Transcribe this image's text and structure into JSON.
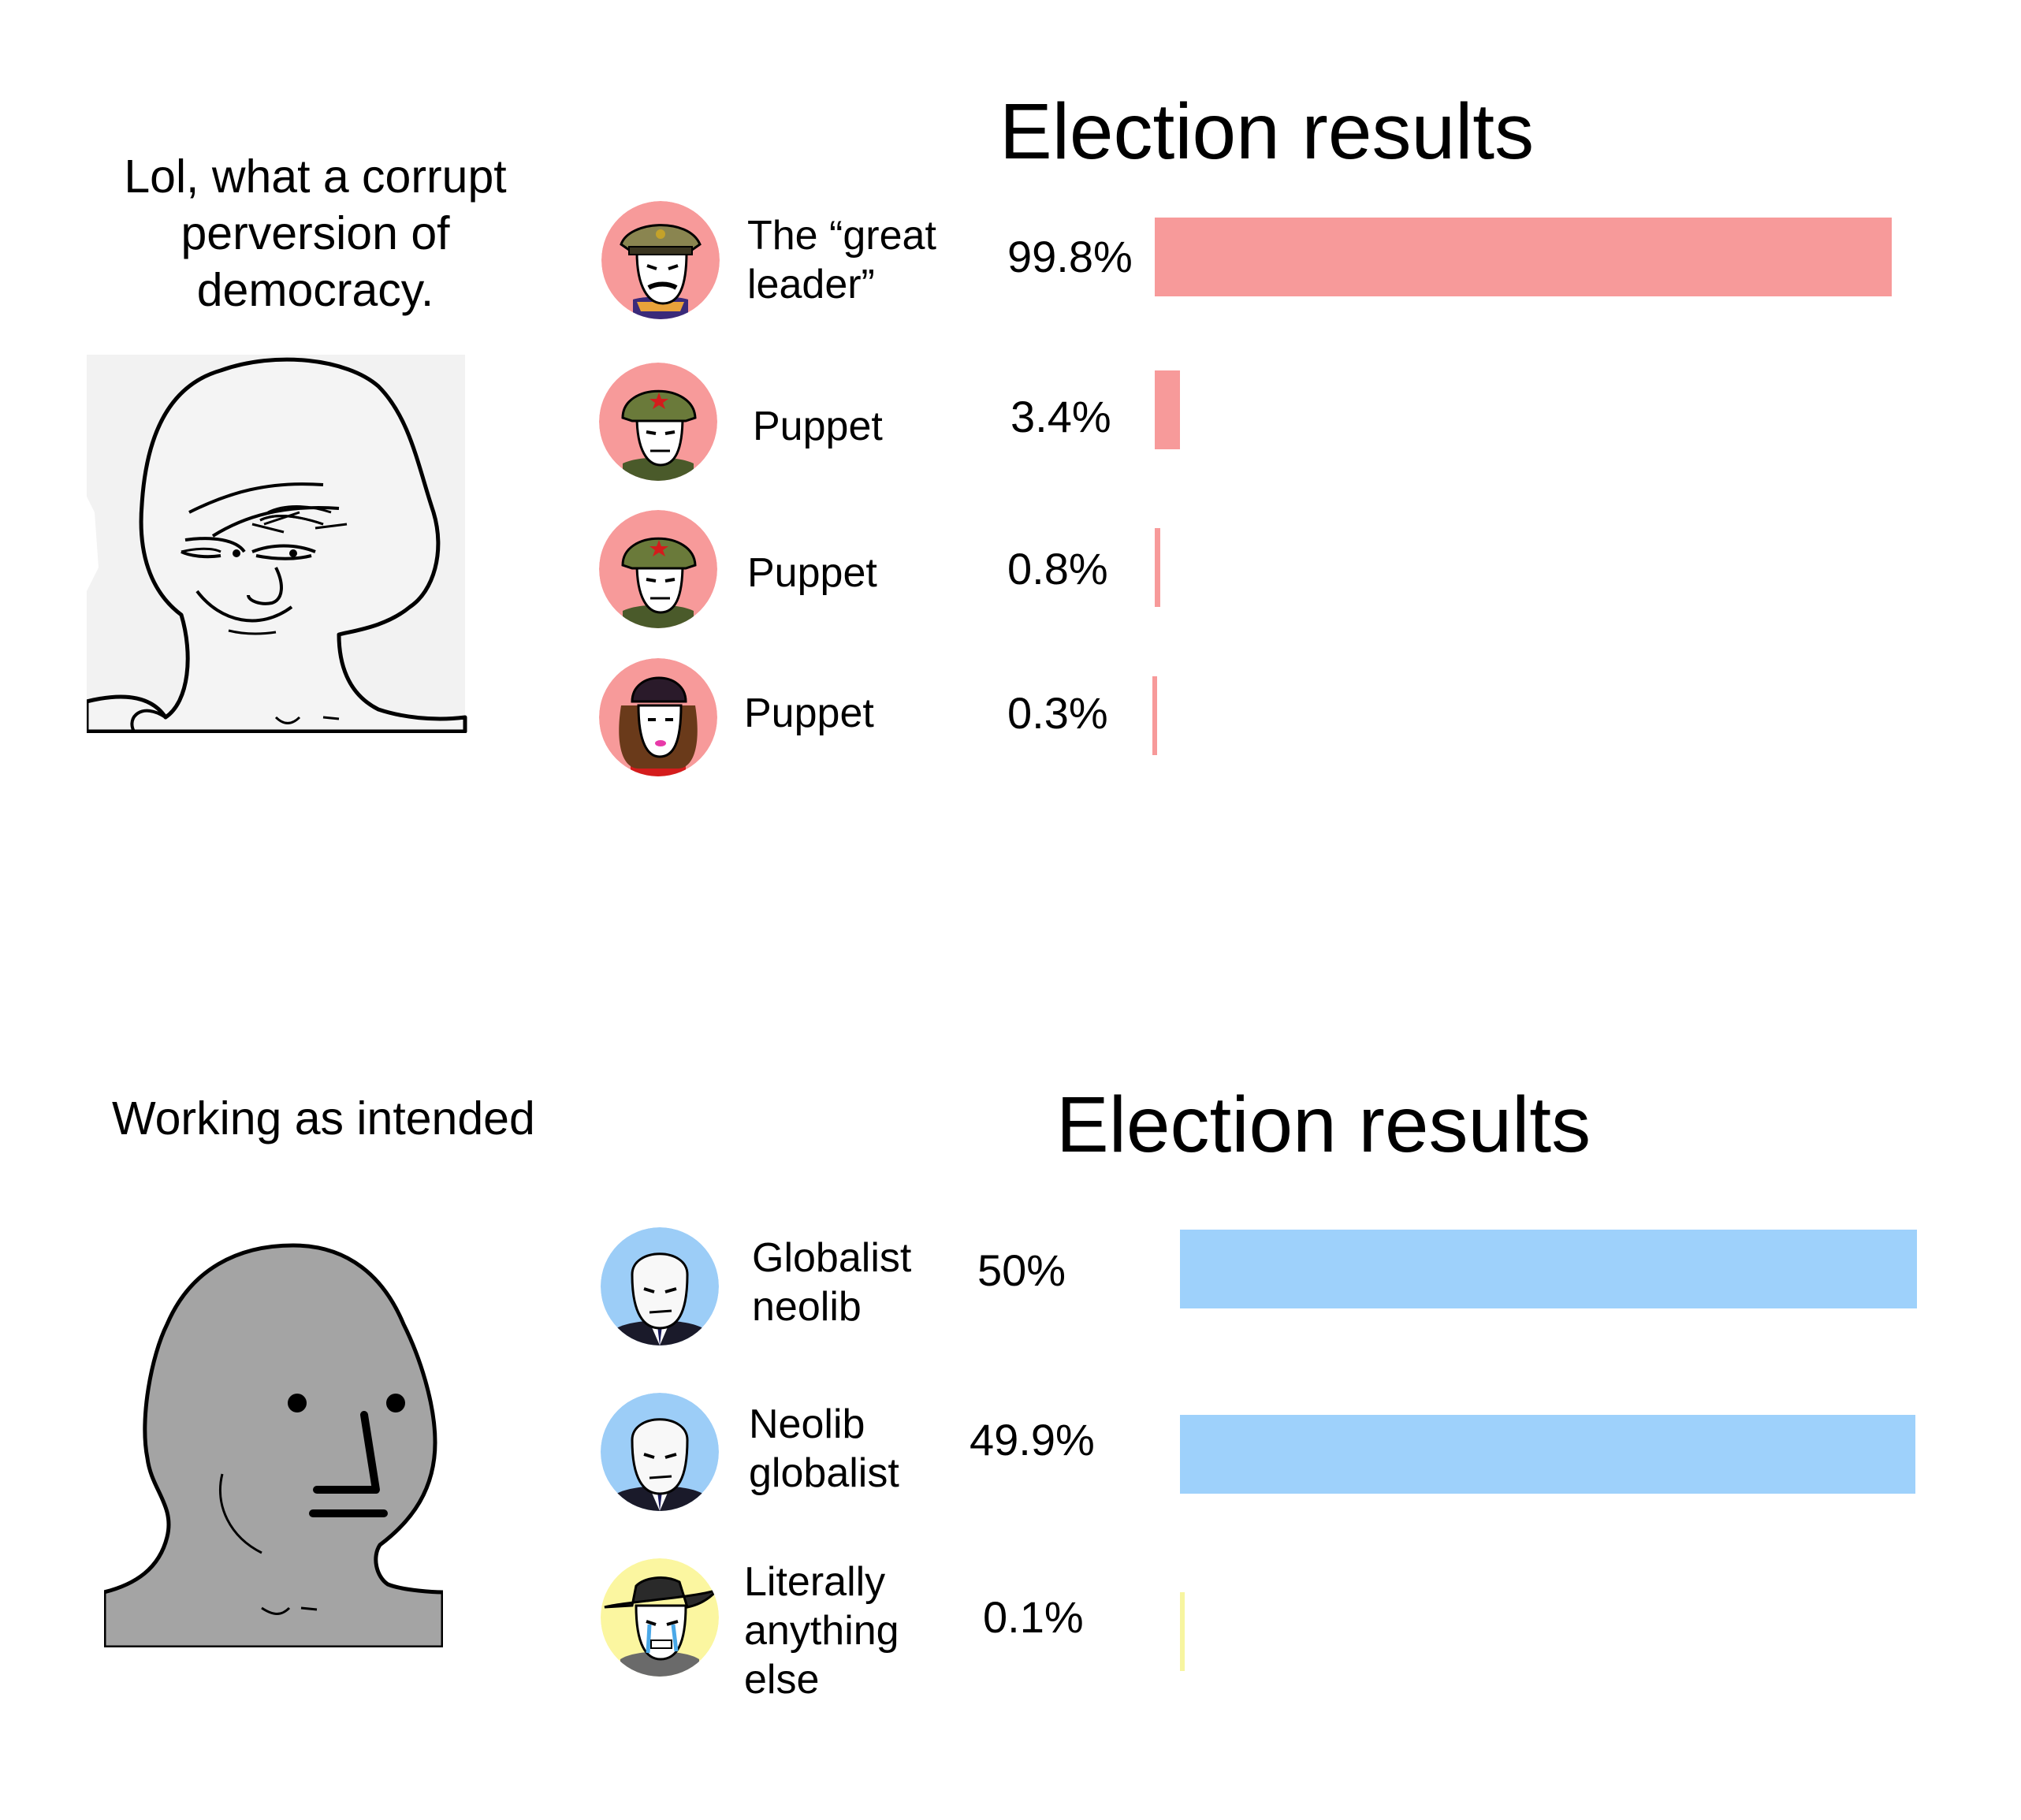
{
  "top_panel": {
    "caption": "Lol, what a corrupt perversion of democracy.",
    "chart_title": "Election results",
    "candidates": [
      {
        "label": "The “great leader”",
        "percent_text": "99.8%",
        "value": 99.8,
        "avatar_icon": "general-avatar-icon",
        "bg": "#f79a9a",
        "bar_color": "#f79a9a"
      },
      {
        "label": "Puppet",
        "percent_text": "3.4%",
        "value": 3.4,
        "avatar_icon": "soldier-avatar-icon",
        "bg": "#f79a9a",
        "bar_color": "#f79a9a"
      },
      {
        "label": "Puppet",
        "percent_text": "0.8%",
        "value": 0.8,
        "avatar_icon": "soldier-avatar-icon",
        "bg": "#f79a9a",
        "bar_color": "#f79a9a"
      },
      {
        "label": "Puppet",
        "percent_text": "0.3%",
        "value": 0.3,
        "avatar_icon": "woman-avatar-icon",
        "bg": "#f79a9a",
        "bar_color": "#f79a9a"
      }
    ]
  },
  "bottom_panel": {
    "caption": "Working as intended",
    "chart_title": "Election results",
    "candidates": [
      {
        "label": "Globalist neolib",
        "percent_text": "50%",
        "value": 50,
        "avatar_icon": "suit-man-avatar-icon",
        "bg": "#9ccdf7",
        "bar_color": "#9ed1fb"
      },
      {
        "label": "Neolib globalist",
        "percent_text": "49.9%",
        "value": 49.9,
        "avatar_icon": "suit-man-avatar-icon",
        "bg": "#9ccdf7",
        "bar_color": "#9ed1fb"
      },
      {
        "label": "Literally anything else",
        "percent_text": "0.1%",
        "value": 0.1,
        "avatar_icon": "crying-cowboy-avatar-icon",
        "bg": "#fbf6a0",
        "bar_color": "#f7f5a0"
      }
    ]
  }
}
